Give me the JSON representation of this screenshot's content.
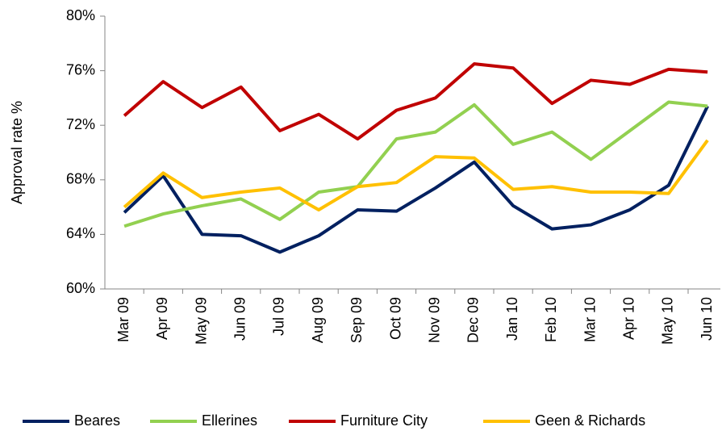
{
  "chart_data": {
    "type": "line",
    "ylabel": "Approval rate %",
    "categories": [
      "Mar 09",
      "Apr 09",
      "May 09",
      "Jun 09",
      "Jul 09",
      "Aug 09",
      "Sep 09",
      "Oct 09",
      "Nov 09",
      "Dec 09",
      "Jan 10",
      "Feb 10",
      "Mar 10",
      "Apr 10",
      "May 10",
      "Jun 10"
    ],
    "series": [
      {
        "name": "Beares",
        "color": "#002060",
        "values": [
          65.6,
          68.3,
          64.0,
          63.9,
          62.7,
          63.9,
          65.8,
          65.7,
          67.4,
          69.3,
          66.1,
          64.4,
          64.7,
          65.8,
          67.6,
          73.4
        ]
      },
      {
        "name": "Ellerines",
        "color": "#92d050",
        "values": [
          64.6,
          65.5,
          66.1,
          66.6,
          65.1,
          67.1,
          67.5,
          71.0,
          71.5,
          73.5,
          70.6,
          71.5,
          69.5,
          71.6,
          73.7,
          73.4
        ]
      },
      {
        "name": "Furniture City",
        "color": "#c00000",
        "values": [
          72.7,
          75.2,
          73.3,
          74.8,
          71.6,
          72.8,
          71.0,
          73.1,
          74.0,
          76.5,
          76.2,
          73.6,
          75.3,
          75.0,
          76.1,
          75.9
        ]
      },
      {
        "name": "Geen & Richards",
        "color": "#ffc000",
        "values": [
          66.0,
          68.5,
          66.7,
          67.1,
          67.4,
          65.8,
          67.5,
          67.8,
          69.7,
          69.6,
          67.3,
          67.5,
          67.1,
          67.1,
          67.0,
          70.9
        ]
      }
    ],
    "ylim": [
      60,
      80
    ],
    "yticks": [
      {
        "value": 60,
        "label": "60%"
      },
      {
        "value": 64,
        "label": "64%"
      },
      {
        "value": 68,
        "label": "68%"
      },
      {
        "value": 72,
        "label": "72%"
      },
      {
        "value": 76,
        "label": "76%"
      },
      {
        "value": 80,
        "label": "80%"
      }
    ],
    "grid": false,
    "legend": "bottom"
  }
}
